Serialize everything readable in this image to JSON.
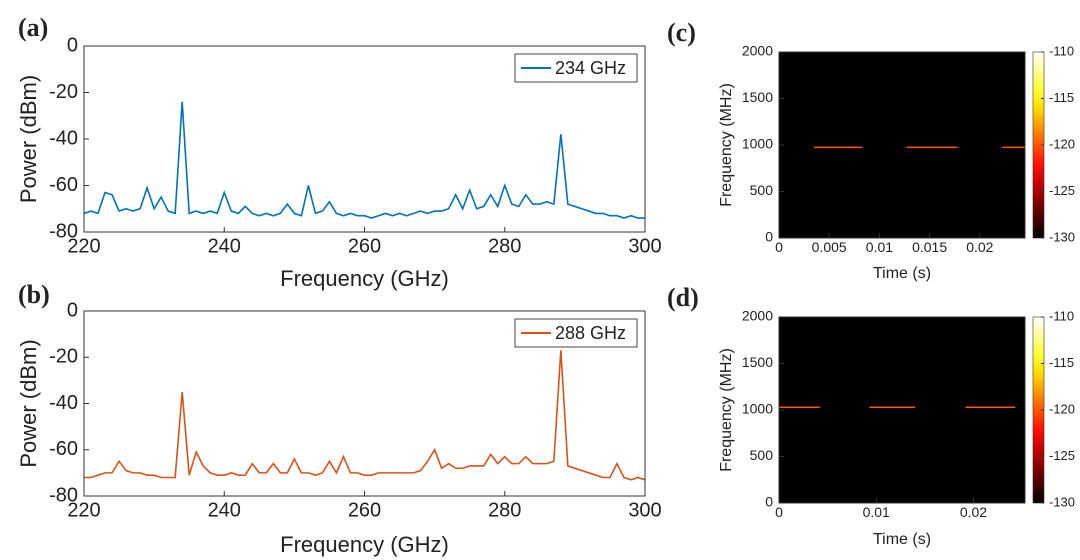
{
  "chart_data": [
    {
      "type": "line",
      "panel_label": "(a)",
      "x_label": "Frequency (GHz)",
      "y_label": "Power (dBm)",
      "xlim": [
        220,
        300
      ],
      "xticks": [
        220,
        240,
        260,
        280,
        300
      ],
      "ylim": [
        -80,
        0
      ],
      "yticks": [
        0,
        -20,
        -40,
        -60,
        -80
      ],
      "legend": "northeast",
      "x": [
        220,
        221,
        222,
        223,
        224,
        225,
        226,
        227,
        228,
        229,
        230,
        231,
        232,
        233,
        234,
        235,
        236,
        237,
        238,
        239,
        240,
        241,
        242,
        243,
        244,
        245,
        246,
        247,
        248,
        249,
        250,
        251,
        252,
        253,
        254,
        255,
        256,
        257,
        258,
        259,
        260,
        261,
        262,
        263,
        264,
        265,
        266,
        267,
        268,
        269,
        270,
        271,
        272,
        273,
        274,
        275,
        276,
        277,
        278,
        279,
        280,
        281,
        282,
        283,
        284,
        285,
        286,
        287,
        288,
        289,
        290,
        291,
        292,
        293,
        294,
        295,
        296,
        297,
        298,
        299,
        300
      ],
      "series": [
        {
          "name": "234 GHz",
          "color": "#0072BD",
          "values": [
            -72,
            -71,
            -72,
            -63,
            -64,
            -71,
            -70,
            -71,
            -70,
            -61,
            -70,
            -65,
            -71,
            -72,
            -24,
            -72,
            -71,
            -72,
            -71,
            -72,
            -63,
            -71,
            -72,
            -69,
            -72,
            -73,
            -72,
            -73,
            -72,
            -68,
            -72,
            -73,
            -60,
            -72,
            -71,
            -67,
            -72,
            -73,
            -72,
            -73,
            -73,
            -74,
            -73,
            -72,
            -73,
            -72,
            -73,
            -72,
            -71,
            -72,
            -71,
            -71,
            -70,
            -64,
            -70,
            -62,
            -70,
            -69,
            -64,
            -69,
            -60,
            -68,
            -69,
            -64,
            -68,
            -68,
            -67,
            -68,
            -38,
            -68,
            -69,
            -70,
            -71,
            -72,
            -72,
            -73,
            -73,
            -74,
            -73,
            -74,
            -74
          ]
        }
      ]
    },
    {
      "type": "line",
      "panel_label": "(b)",
      "x_label": "Frequency (GHz)",
      "y_label": "Power (dBm)",
      "xlim": [
        220,
        300
      ],
      "xticks": [
        220,
        240,
        260,
        280,
        300
      ],
      "ylim": [
        -80,
        0
      ],
      "yticks": [
        0,
        -20,
        -40,
        -60,
        -80
      ],
      "legend": "northeast",
      "x": [
        220,
        221,
        222,
        223,
        224,
        225,
        226,
        227,
        228,
        229,
        230,
        231,
        232,
        233,
        234,
        235,
        236,
        237,
        238,
        239,
        240,
        241,
        242,
        243,
        244,
        245,
        246,
        247,
        248,
        249,
        250,
        251,
        252,
        253,
        254,
        255,
        256,
        257,
        258,
        259,
        260,
        261,
        262,
        263,
        264,
        265,
        266,
        267,
        268,
        269,
        270,
        271,
        272,
        273,
        274,
        275,
        276,
        277,
        278,
        279,
        280,
        281,
        282,
        283,
        284,
        285,
        286,
        287,
        288,
        289,
        290,
        291,
        292,
        293,
        294,
        295,
        296,
        297,
        298,
        299,
        300
      ],
      "series": [
        {
          "name": "288 GHz",
          "color": "#D95319",
          "values": [
            -72,
            -72,
            -71,
            -70,
            -70,
            -65,
            -69,
            -70,
            -70,
            -71,
            -71,
            -72,
            -72,
            -72,
            -35,
            -71,
            -61,
            -67,
            -70,
            -71,
            -71,
            -70,
            -71,
            -71,
            -66,
            -70,
            -70,
            -66,
            -70,
            -70,
            -64,
            -70,
            -70,
            -71,
            -70,
            -65,
            -70,
            -63,
            -70,
            -70,
            -71,
            -71,
            -70,
            -70,
            -70,
            -70,
            -70,
            -70,
            -69,
            -65,
            -60,
            -68,
            -66,
            -68,
            -68,
            -67,
            -67,
            -67,
            -62,
            -66,
            -63,
            -66,
            -66,
            -63,
            -66,
            -66,
            -66,
            -65,
            -17,
            -67,
            -68,
            -69,
            -70,
            -71,
            -72,
            -72,
            -66,
            -72,
            -73,
            -72,
            -73
          ]
        }
      ]
    },
    {
      "type": "spectrogram",
      "panel_label": "(c)",
      "x_label": "Time (s)",
      "y_label": "Frequency (MHz)",
      "colormap": "hot",
      "xlim": [
        0,
        0.0245
      ],
      "xticks": [
        0,
        0.005,
        0.01,
        0.015,
        0.02
      ],
      "ylim": [
        0,
        2000
      ],
      "yticks": [
        0,
        500,
        1000,
        1500,
        2000
      ],
      "clim": [
        -130,
        -110
      ],
      "cticks": [
        -110,
        -115,
        -120,
        -125,
        -130
      ],
      "segments": [
        {
          "t_start": 0.0035,
          "t_end": 0.0083,
          "frequency": 975,
          "power": -120
        },
        {
          "t_start": 0.0127,
          "t_end": 0.0178,
          "frequency": 975,
          "power": -120
        },
        {
          "t_start": 0.0222,
          "t_end": 0.0245,
          "frequency": 975,
          "power": -120
        }
      ]
    },
    {
      "type": "spectrogram",
      "panel_label": "(d)",
      "x_label": "Time (s)",
      "y_label": "Frequency (MHz)",
      "colormap": "hot",
      "xlim": [
        0,
        0.0253
      ],
      "xticks": [
        0,
        0.01,
        0.02
      ],
      "ylim": [
        0,
        2000
      ],
      "yticks": [
        0,
        500,
        1000,
        1500,
        2000
      ],
      "clim": [
        -130,
        -110
      ],
      "cticks": [
        -110,
        -115,
        -120,
        -125,
        -130
      ],
      "segments": [
        {
          "t_start": 0.0,
          "t_end": 0.0042,
          "frequency": 1030,
          "power": -120
        },
        {
          "t_start": 0.0093,
          "t_end": 0.014,
          "frequency": 1030,
          "power": -120
        },
        {
          "t_start": 0.0192,
          "t_end": 0.0243,
          "frequency": 1030,
          "power": -120
        }
      ]
    }
  ]
}
